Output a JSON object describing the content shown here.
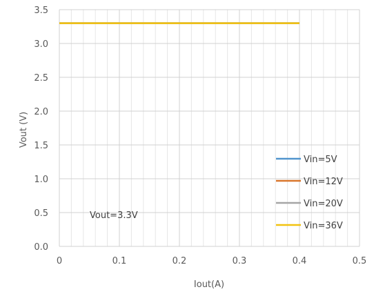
{
  "chart_data": {
    "type": "line",
    "title": "",
    "xlabel": "Iout(A)",
    "ylabel": "Vout (V)",
    "xlim": [
      0,
      0.5
    ],
    "ylim": [
      0,
      3.5
    ],
    "x_ticks": [
      "0",
      "0.1",
      "0.2",
      "0.3",
      "0.4",
      "0.5"
    ],
    "y_ticks": [
      "0.0",
      "0.5",
      "1.0",
      "1.5",
      "2.0",
      "2.5",
      "3.0",
      "3.5"
    ],
    "grid": true,
    "legend_position": "lower-right",
    "annotation": "Vout=3.3V",
    "series": [
      {
        "name": "Vin=5V",
        "color": "#4f94cd",
        "x": [
          0,
          0.4
        ],
        "y": [
          3.3,
          3.3
        ]
      },
      {
        "name": "Vin=12V",
        "color": "#d9762b",
        "x": [
          0,
          0.4
        ],
        "y": [
          3.3,
          3.3
        ]
      },
      {
        "name": "Vin=20V",
        "color": "#a5a5a5",
        "x": [
          0,
          0.4
        ],
        "y": [
          3.3,
          3.3
        ]
      },
      {
        "name": "Vin=36V",
        "color": "#f2c20f",
        "x": [
          0,
          0.4
        ],
        "y": [
          3.3,
          3.3
        ]
      }
    ]
  }
}
